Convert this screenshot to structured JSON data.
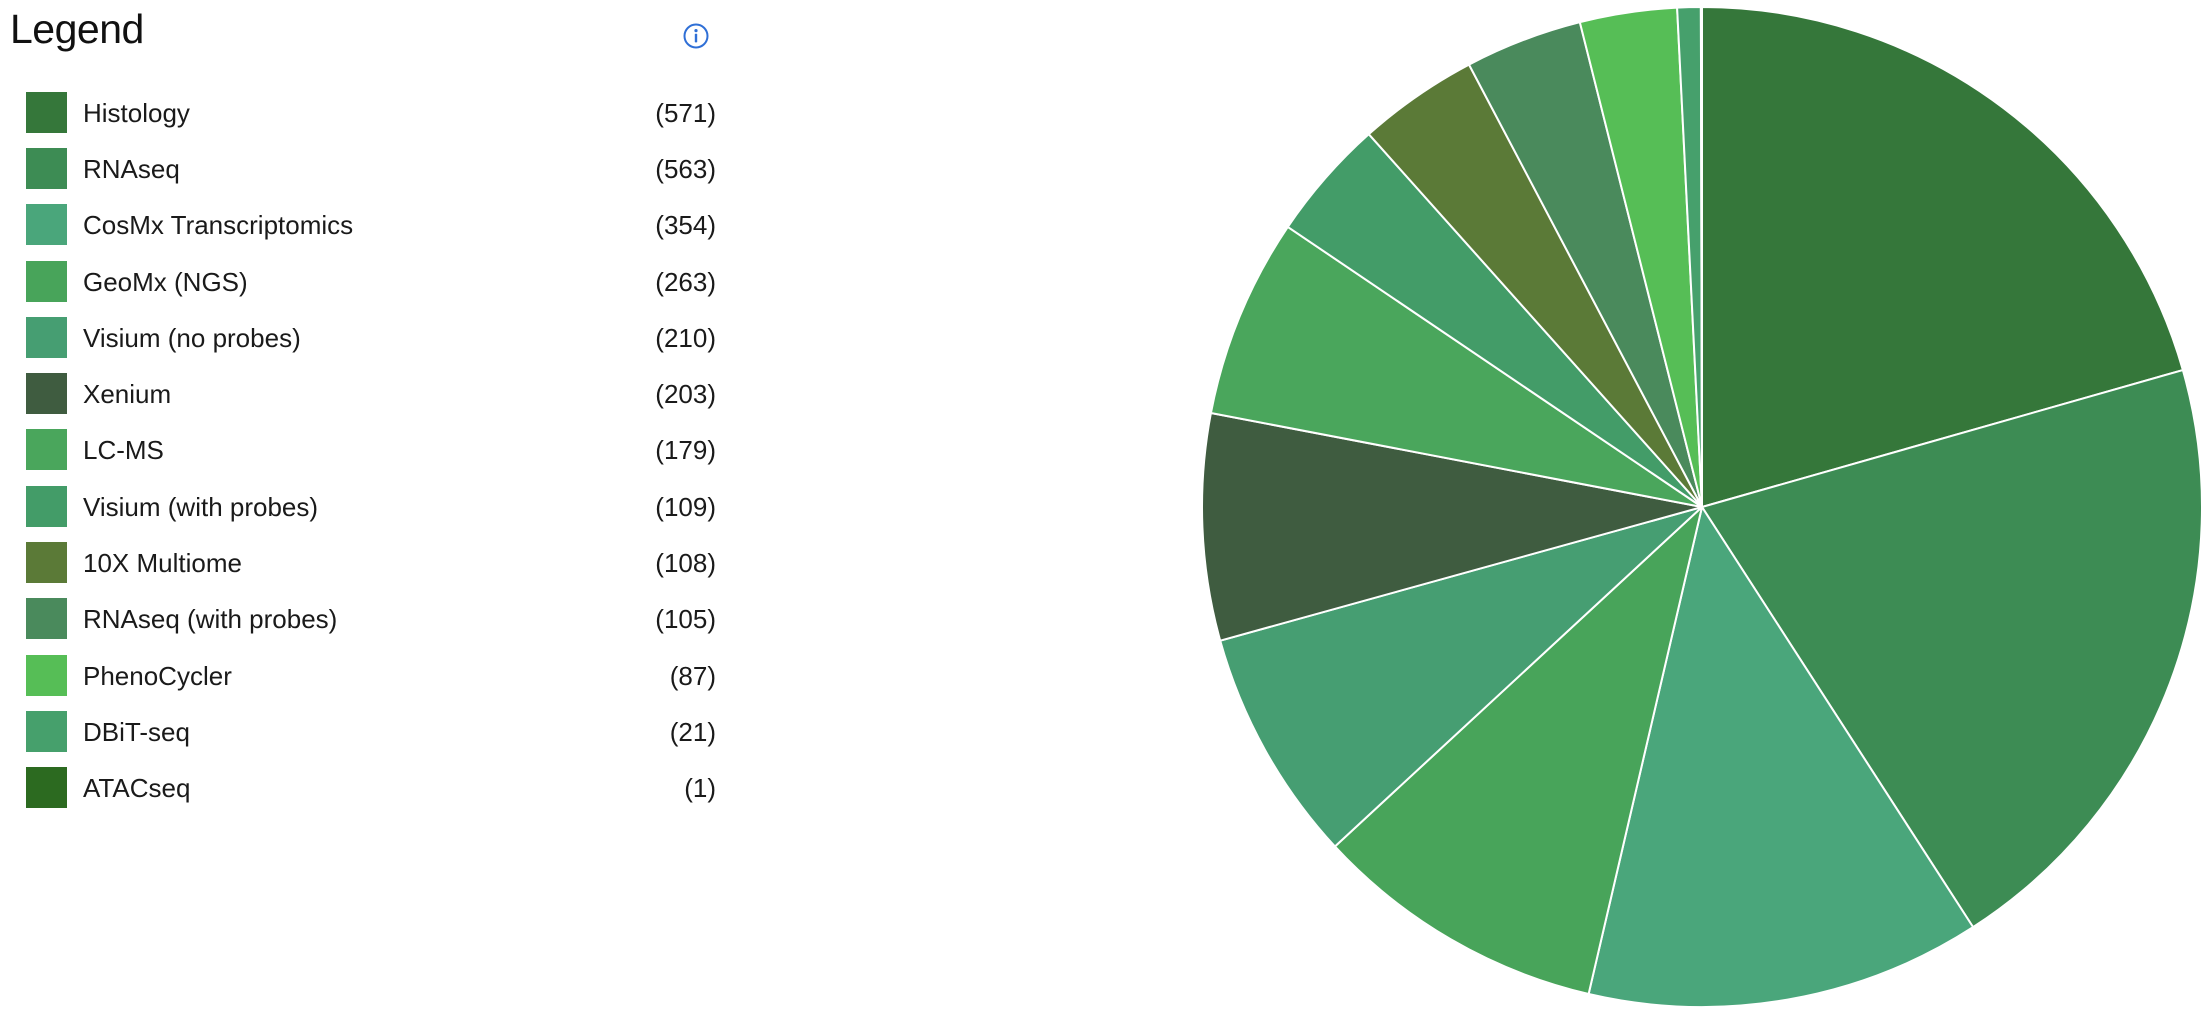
{
  "legend": {
    "title": "Legend",
    "info_icon": "info-icon",
    "info_color": "#2f6fd6"
  },
  "chart_data": {
    "type": "pie",
    "title": "",
    "legend_position": "left",
    "series": [
      {
        "label": "Histology",
        "count_label": "(571)",
        "value": 571,
        "color": "#35773a"
      },
      {
        "label": "RNAseq",
        "count_label": "(563)",
        "value": 563,
        "color": "#3d8c54"
      },
      {
        "label": "CosMx Transcriptomics",
        "count_label": "(354)",
        "value": 354,
        "color": "#4aa67b"
      },
      {
        "label": "GeoMx (NGS)",
        "count_label": "(263)",
        "value": 263,
        "color": "#48a45a"
      },
      {
        "label": "Visium (no probes)",
        "count_label": "(210)",
        "value": 210,
        "color": "#469e72"
      },
      {
        "label": "Xenium",
        "count_label": "(203)",
        "value": 203,
        "color": "#3f5c40"
      },
      {
        "label": "LC-MS",
        "count_label": "(179)",
        "value": 179,
        "color": "#4aa65c"
      },
      {
        "label": "Visium (with probes)",
        "count_label": "(109)",
        "value": 109,
        "color": "#439c68"
      },
      {
        "label": "10X Multiome",
        "count_label": "(108)",
        "value": 108,
        "color": "#5b7a37"
      },
      {
        "label": "RNAseq (with probes)",
        "count_label": "(105)",
        "value": 105,
        "color": "#4a8a5c"
      },
      {
        "label": "PhenoCycler",
        "count_label": "(87)",
        "value": 87,
        "color": "#56be56"
      },
      {
        "label": "DBiT-seq",
        "count_label": "(21)",
        "value": 21,
        "color": "#46a06c"
      },
      {
        "label": "ATACseq",
        "count_label": "(1)",
        "value": 1,
        "color": "#2c6a20"
      }
    ]
  }
}
